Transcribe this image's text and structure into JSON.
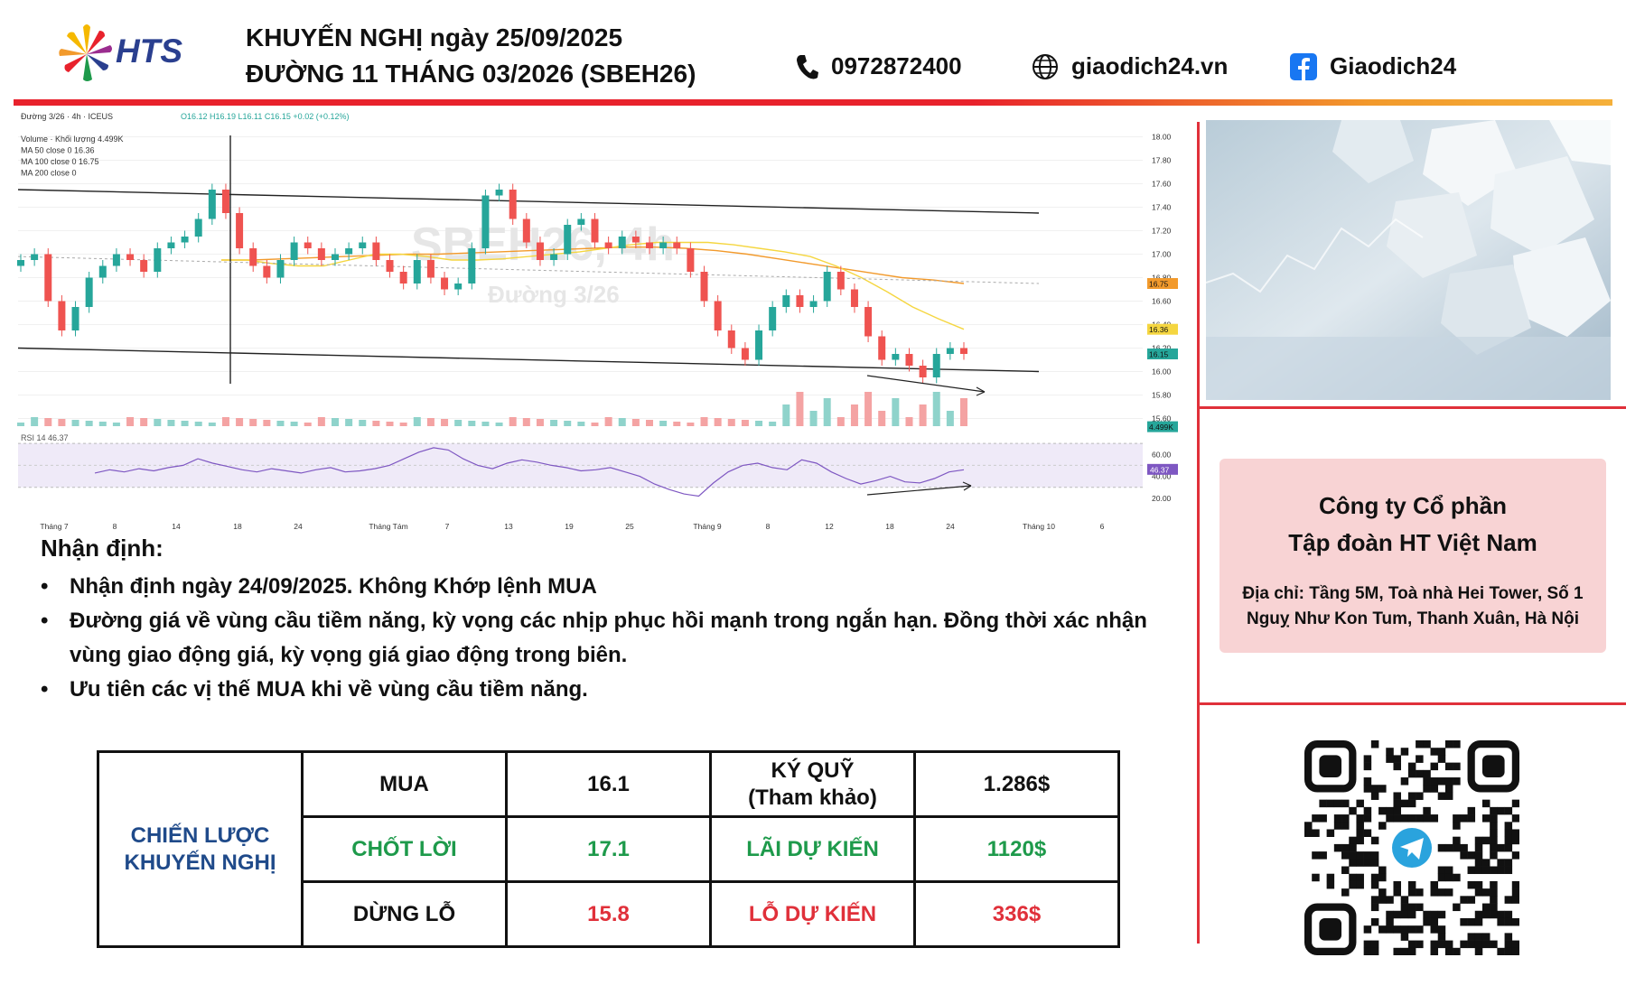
{
  "header": {
    "brand": "HTS",
    "title_line1": "KHUYẾN NGHỊ ngày 25/09/2025",
    "title_line2": "ĐƯỜNG 11 THÁNG 03/2026 (SBEH26)",
    "phone": "0972872400",
    "website": "giaodich24.vn",
    "facebook": "Giaodich24"
  },
  "chart_data": {
    "type": "line",
    "chart_type_detail": "candlestick",
    "legend_lines": [
      "Đường 3/26 · 4h · ICEUS",
      "O16.12 H16.19 L16.11 C16.15 +0.02 (+0.12%)",
      "Volume · Khối lượng 4.499K",
      "MA 50 close 0  16.36",
      "MA 100 close 0  16.75",
      "MA 200 close 0"
    ],
    "watermark_symbol": "SBEH26, 4h",
    "watermark_name": "Đường 3/26",
    "y_ticks": [
      18.0,
      17.8,
      17.6,
      17.4,
      17.2,
      17.0,
      16.8,
      16.6,
      16.4,
      16.2,
      16.0,
      15.8,
      15.6
    ],
    "ylim": [
      15.55,
      18.05
    ],
    "x_ticks": [
      "Tháng 7",
      "8",
      "14",
      "18",
      "24",
      "Tháng Tám",
      "7",
      "13",
      "19",
      "25",
      "Tháng 9",
      "8",
      "12",
      "18",
      "24",
      "Tháng 10",
      "6"
    ],
    "price_labels": [
      {
        "label": "16.75",
        "value": 16.75,
        "color": "#f29a2c"
      },
      {
        "label": "16.36",
        "value": 16.36,
        "color": "#f5d640"
      },
      {
        "label": "16.15",
        "value": 16.15,
        "color": "#26a69a"
      },
      {
        "label": "4.499K",
        "value": 15.53,
        "color": "#26a69a"
      }
    ],
    "close_series": [
      16.95,
      17.0,
      16.6,
      16.35,
      16.55,
      16.8,
      16.9,
      17.0,
      16.95,
      16.85,
      17.05,
      17.1,
      17.15,
      17.3,
      17.55,
      17.35,
      17.05,
      16.9,
      16.8,
      16.95,
      17.1,
      17.05,
      16.95,
      17.0,
      17.05,
      17.1,
      16.95,
      16.85,
      16.75,
      16.95,
      16.8,
      16.7,
      16.75,
      17.05,
      17.5,
      17.55,
      17.3,
      17.1,
      16.95,
      17.0,
      17.25,
      17.3,
      17.1,
      17.05,
      17.15,
      17.1,
      17.05,
      17.1,
      17.05,
      16.85,
      16.6,
      16.35,
      16.2,
      16.1,
      16.35,
      16.55,
      16.65,
      16.55,
      16.6,
      16.85,
      16.7,
      16.55,
      16.3,
      16.1,
      16.15,
      16.05,
      15.95,
      16.15,
      16.2,
      16.15
    ],
    "ma50_series": [
      16.95,
      16.95,
      16.92,
      16.9,
      16.9,
      16.95,
      17.0,
      17.0,
      16.98,
      16.95,
      16.95,
      16.96,
      16.98,
      17.0,
      17.02,
      17.05,
      17.08,
      17.1,
      17.1,
      17.1,
      17.08,
      17.05,
      17.02,
      16.98,
      16.9,
      16.8,
      16.68,
      16.55,
      16.45,
      16.36
    ],
    "ma100_series": [
      16.95,
      16.95,
      16.96,
      16.97,
      16.98,
      16.99,
      17.0,
      17.0,
      17.01,
      17.02,
      17.03,
      17.04,
      17.05,
      17.06,
      17.06,
      17.05,
      17.03,
      17.0,
      16.96,
      16.92,
      16.88,
      16.84,
      16.8,
      16.78,
      16.75
    ],
    "upper_channel": {
      "start": 17.55,
      "end": 17.35
    },
    "lower_channel": {
      "start": 16.2,
      "end": 16.0
    },
    "rsi": {
      "label": "RSI 14  46.37",
      "value": 46.37,
      "ticks": [
        60.0,
        40.0,
        20.0
      ],
      "ylim": [
        15,
        75
      ],
      "series": [
        43,
        46,
        44,
        47,
        45,
        48,
        50,
        56,
        52,
        49,
        46,
        44,
        47,
        45,
        43,
        46,
        48,
        44,
        45,
        47,
        50,
        56,
        62,
        66,
        64,
        56,
        50,
        47,
        52,
        55,
        53,
        50,
        48,
        45,
        46,
        48,
        44,
        40,
        33,
        28,
        24,
        22,
        34,
        44,
        50,
        52,
        48,
        46,
        55,
        52,
        44,
        38,
        33,
        36,
        40,
        35,
        34,
        38,
        44,
        46
      ]
    }
  },
  "analysis": {
    "heading": "Nhận định:",
    "bullets": [
      "Nhận định ngày 24/09/2025. Không Khớp lệnh MUA",
      "Đường giá về vùng cầu tiềm năng, kỳ vọng các nhịp phục hồi mạnh trong ngắn hạn. Đồng thời xác nhận vùng giao động giá, kỳ vọng giá giao động trong biên.",
      "Ưu tiên các vị thế MUA khi về vùng cầu tiềm năng."
    ]
  },
  "strategy": {
    "head_line1": "CHIẾN LƯỢC",
    "head_line2": "KHUYẾN NGHỊ",
    "rows": [
      {
        "action": "MUA",
        "price": "16.1",
        "metric_line1": "KÝ QUỸ",
        "metric_line2": "(Tham khảo)",
        "amount": "1.286$"
      },
      {
        "action": "CHỐT LỜI",
        "price": "17.1",
        "metric_line1": "LÃI DỰ KIẾN",
        "metric_line2": "",
        "amount": "1120$"
      },
      {
        "action": "DỪNG LỖ",
        "price": "15.8",
        "metric_line1": "LỖ DỰ KIẾN",
        "metric_line2": "",
        "amount": "336$"
      }
    ]
  },
  "company": {
    "name_line1": "Công ty Cổ phần",
    "name_line2": "Tập đoàn HT Việt Nam",
    "address_line1": "Địa chỉ: Tầng 5M, Toà nhà Hei Tower, Số 1",
    "address_line2": "Nguỵ Như Kon Tum, Thanh Xuân, Hà Nội"
  },
  "colors": {
    "accent_red": "#e0303a",
    "green": "#1e9a4b",
    "brand_blue": "#2a3f8f",
    "candle_up": "#26a69a",
    "candle_down": "#ef5350"
  }
}
